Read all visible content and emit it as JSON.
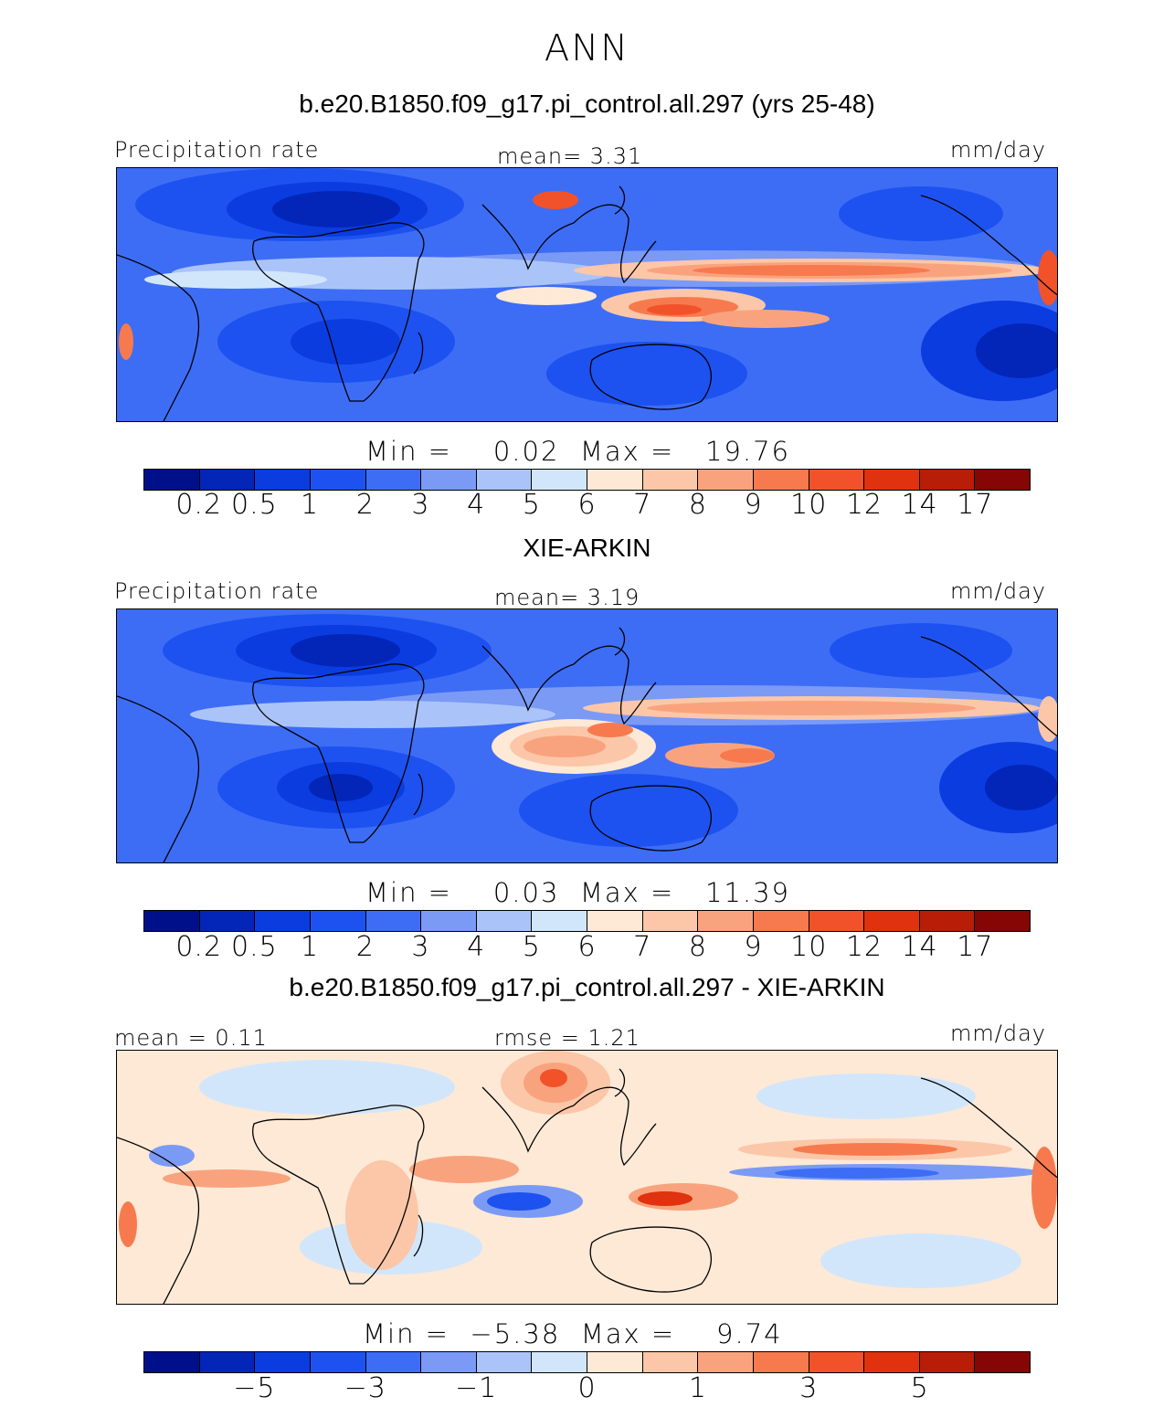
{
  "title": "ANN",
  "panels": [
    {
      "case_title": "b.e20.B1850.f09_g17.pi_control.all.297 (yrs 25-48)",
      "left_label": "Precipitation rate",
      "center_label": "mean=   3.31",
      "right_label": "mm/day",
      "min_max": "Min =    0.02  Max =   19.76",
      "colorbar": {
        "colors": [
          "#00108a",
          "#0326b8",
          "#0a3ce0",
          "#1d52f0",
          "#3d6df5",
          "#7a9af5",
          "#aac4fa",
          "#d2e6fb",
          "#fde9d6",
          "#fbc7a8",
          "#f9a37e",
          "#f77a4f",
          "#f2522a",
          "#e0320f",
          "#b81d08",
          "#860505"
        ],
        "ticks": [
          "0.2",
          "0.5",
          "1",
          "2",
          "3",
          "4",
          "5",
          "6",
          "7",
          "8",
          "9",
          "10",
          "12",
          "14",
          "17"
        ]
      }
    },
    {
      "case_title": "XIE-ARKIN",
      "left_label": "Precipitation rate",
      "center_label": "mean=   3.19",
      "right_label": "mm/day",
      "min_max": "Min =    0.03  Max =   11.39",
      "colorbar": {
        "colors": [
          "#00108a",
          "#0326b8",
          "#0a3ce0",
          "#1d52f0",
          "#3d6df5",
          "#7a9af5",
          "#aac4fa",
          "#d2e6fb",
          "#fde9d6",
          "#fbc7a8",
          "#f9a37e",
          "#f77a4f",
          "#f2522a",
          "#e0320f",
          "#b81d08",
          "#860505"
        ],
        "ticks": [
          "0.2",
          "0.5",
          "1",
          "2",
          "3",
          "4",
          "5",
          "6",
          "7",
          "8",
          "9",
          "10",
          "12",
          "14",
          "17"
        ]
      }
    },
    {
      "case_title": "b.e20.B1850.f09_g17.pi_control.all.297 - XIE-ARKIN",
      "left_label": "mean =   0.11",
      "center_label": "rmse =   1.21",
      "right_label": "mm/day",
      "min_max": "Min =  −5.38  Max =    9.74",
      "colorbar": {
        "colors": [
          "#00108a",
          "#0326b8",
          "#0a3ce0",
          "#1d52f0",
          "#3d6df5",
          "#7a9af5",
          "#aac4fa",
          "#d2e6fb",
          "#fde9d6",
          "#fbc7a8",
          "#f9a37e",
          "#f77a4f",
          "#f2522a",
          "#e0320f",
          "#b81d08",
          "#860505"
        ],
        "ticks": [
          "−5",
          "−3",
          "−1",
          "0",
          "1",
          "3",
          "5"
        ]
      }
    }
  ]
}
